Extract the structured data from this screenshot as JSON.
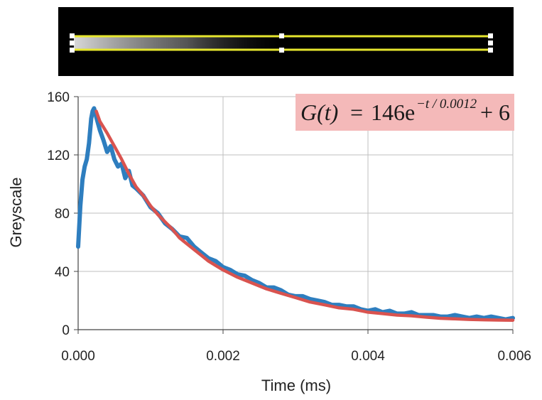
{
  "colors": {
    "data_series": "#2E7EBF",
    "fit_series": "#D9534F",
    "strip_background": "#000000",
    "strip_lines": "#E6E62E",
    "equation_box": "#F4B9B9",
    "grid": "#BFBFBF"
  },
  "equation": {
    "lhs": "G(t)",
    "equals": "=",
    "coefficient": "146e",
    "exponent": "−t / 0.0012",
    "offset": "+ 6"
  },
  "chart_data": {
    "type": "line",
    "xlabel": "Time (ms)",
    "ylabel": "Greyscale",
    "xlim": [
      0,
      0.006
    ],
    "ylim": [
      0,
      160
    ],
    "xticks": [
      "0.000",
      "0.002",
      "0.004",
      "0.006"
    ],
    "yticks": [
      "0",
      "40",
      "80",
      "120",
      "160"
    ],
    "grid": true,
    "series": [
      {
        "role": "measured",
        "x": [
          0.0,
          3e-05,
          6e-05,
          9e-05,
          0.00012,
          0.00015,
          0.00018,
          0.0002,
          0.00022,
          0.00025,
          0.0003,
          0.00035,
          0.0004,
          0.00045,
          0.0005,
          0.00055,
          0.0006,
          0.00065,
          0.0007,
          0.00075,
          0.0008,
          0.0009,
          0.001,
          0.0011,
          0.0012,
          0.0013,
          0.0014,
          0.0015,
          0.0016,
          0.0017,
          0.0018,
          0.0019,
          0.002,
          0.0021,
          0.0022,
          0.0023,
          0.0024,
          0.0025,
          0.0026,
          0.0027,
          0.0028,
          0.0029,
          0.003,
          0.0031,
          0.0032,
          0.0033,
          0.0034,
          0.0035,
          0.0036,
          0.0037,
          0.0038,
          0.0039,
          0.004,
          0.0041,
          0.0042,
          0.0043,
          0.0044,
          0.0045,
          0.0046,
          0.0047,
          0.0048,
          0.0049,
          0.005,
          0.0051,
          0.0052,
          0.0053,
          0.0054,
          0.0055,
          0.0056,
          0.0057,
          0.0058,
          0.0059,
          0.006
        ],
        "y": [
          57,
          85,
          103,
          112,
          117,
          128,
          145,
          150,
          152,
          146,
          137,
          130,
          122,
          126,
          117,
          112,
          114,
          104,
          109,
          99,
          97,
          92,
          84,
          80,
          73,
          69,
          64,
          63,
          57,
          53,
          49,
          47,
          43,
          41,
          38,
          37,
          34,
          32,
          29,
          29,
          27,
          24,
          23,
          23,
          21,
          20,
          19,
          17,
          17,
          16,
          16,
          14,
          13,
          14,
          12,
          13,
          11,
          11,
          12,
          10,
          10,
          10,
          9,
          9,
          10,
          9,
          8,
          9,
          8,
          9,
          8,
          7,
          8
        ]
      },
      {
        "role": "fit",
        "x": [
          0.00025,
          0.0003,
          0.0004,
          0.0005,
          0.0006,
          0.0007,
          0.0008,
          0.0009,
          0.001,
          0.0011,
          0.0012,
          0.0013,
          0.0014,
          0.0015,
          0.0016,
          0.0017,
          0.0018,
          0.0019,
          0.002,
          0.0022,
          0.0024,
          0.0026,
          0.0028,
          0.003,
          0.0032,
          0.0034,
          0.0036,
          0.0038,
          0.004,
          0.0042,
          0.0044,
          0.0046,
          0.0048,
          0.005,
          0.0052,
          0.0054,
          0.0056,
          0.0058,
          0.006
        ],
        "y": [
          150,
          143,
          135,
          126,
          117,
          107,
          98,
          92,
          85,
          79,
          74,
          69,
          63,
          59,
          55,
          51,
          47,
          44,
          41,
          36,
          32,
          28,
          25,
          22,
          19,
          17,
          15,
          14,
          12,
          11,
          10,
          9.5,
          8.6,
          7.8,
          7.4,
          7.0,
          6.8,
          6.6,
          6.5
        ]
      }
    ]
  }
}
